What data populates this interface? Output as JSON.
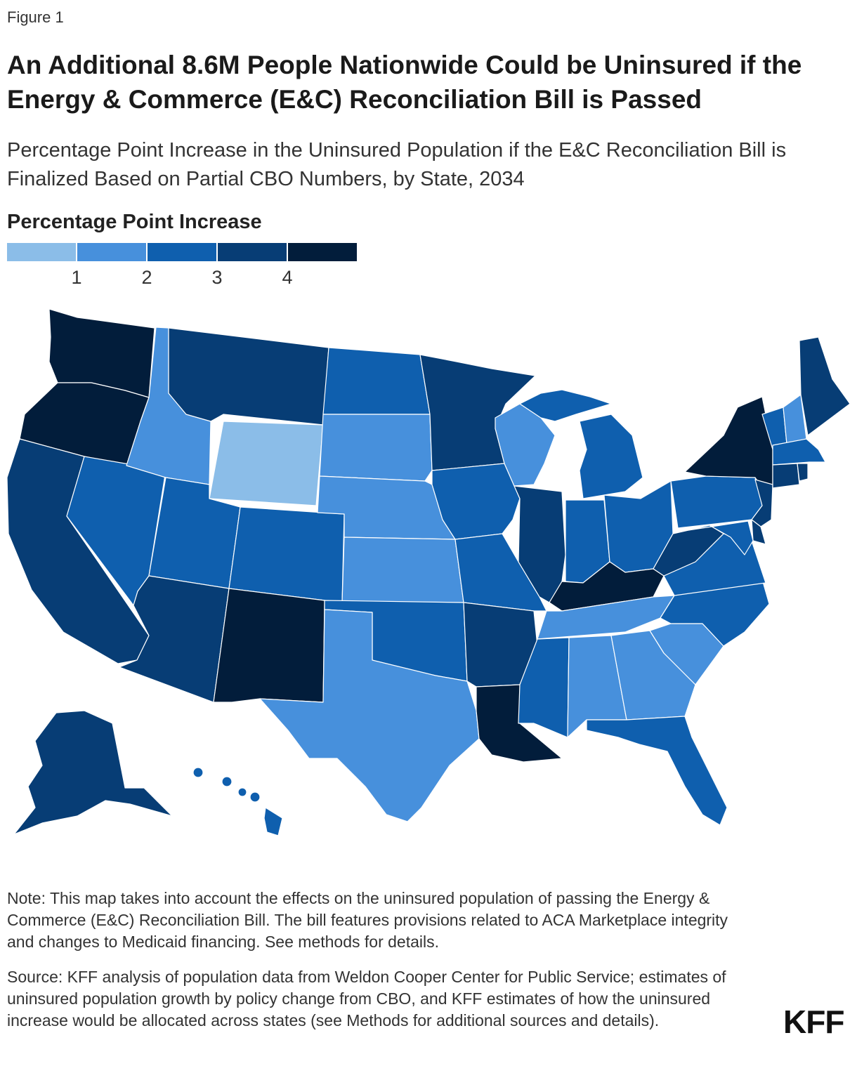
{
  "figure_label": "Figure 1",
  "title": "An Additional 8.6M People Nationwide Could be Uninsured if the Energy & Commerce (E&C) Reconciliation Bill is Passed",
  "subtitle": "Percentage Point Increase in the Uninsured Population if the E&C Reconciliation Bill is Finalized Based on Partial CBO Numbers, by State, 2034",
  "legend": {
    "title": "Percentage Point Increase",
    "ticks": [
      "1",
      "2",
      "3",
      "4"
    ],
    "colors": [
      "#8bbde8",
      "#4790dc",
      "#0f5fae",
      "#073d75",
      "#021d3b"
    ]
  },
  "map_data": {
    "unit": "percentage point increase",
    "states": [
      {
        "state": "WA",
        "bin": 4
      },
      {
        "state": "OR",
        "bin": 4
      },
      {
        "state": "CA",
        "bin": 3
      },
      {
        "state": "NV",
        "bin": 2
      },
      {
        "state": "ID",
        "bin": 1
      },
      {
        "state": "MT",
        "bin": 3
      },
      {
        "state": "WY",
        "bin": 0
      },
      {
        "state": "UT",
        "bin": 2
      },
      {
        "state": "AZ",
        "bin": 3
      },
      {
        "state": "CO",
        "bin": 2
      },
      {
        "state": "NM",
        "bin": 4
      },
      {
        "state": "ND",
        "bin": 2
      },
      {
        "state": "SD",
        "bin": 1
      },
      {
        "state": "NE",
        "bin": 1
      },
      {
        "state": "KS",
        "bin": 1
      },
      {
        "state": "OK",
        "bin": 2
      },
      {
        "state": "TX",
        "bin": 1
      },
      {
        "state": "MN",
        "bin": 3
      },
      {
        "state": "IA",
        "bin": 2
      },
      {
        "state": "MO",
        "bin": 2
      },
      {
        "state": "AR",
        "bin": 3
      },
      {
        "state": "LA",
        "bin": 4
      },
      {
        "state": "WI",
        "bin": 1
      },
      {
        "state": "IL",
        "bin": 3
      },
      {
        "state": "MI",
        "bin": 2
      },
      {
        "state": "IN",
        "bin": 2
      },
      {
        "state": "OH",
        "bin": 2
      },
      {
        "state": "KY",
        "bin": 4
      },
      {
        "state": "TN",
        "bin": 1
      },
      {
        "state": "MS",
        "bin": 2
      },
      {
        "state": "AL",
        "bin": 1
      },
      {
        "state": "GA",
        "bin": 1
      },
      {
        "state": "FL",
        "bin": 2
      },
      {
        "state": "SC",
        "bin": 1
      },
      {
        "state": "NC",
        "bin": 2
      },
      {
        "state": "VA",
        "bin": 2
      },
      {
        "state": "WV",
        "bin": 3
      },
      {
        "state": "PA",
        "bin": 2
      },
      {
        "state": "NY",
        "bin": 4
      },
      {
        "state": "VT",
        "bin": 2
      },
      {
        "state": "NH",
        "bin": 1
      },
      {
        "state": "ME",
        "bin": 3
      },
      {
        "state": "MA",
        "bin": 2
      },
      {
        "state": "CT",
        "bin": 3
      },
      {
        "state": "RI",
        "bin": 3
      },
      {
        "state": "NJ",
        "bin": 3
      },
      {
        "state": "DE",
        "bin": 3
      },
      {
        "state": "MD",
        "bin": 2
      },
      {
        "state": "AK",
        "bin": 3
      },
      {
        "state": "HI",
        "bin": 2
      }
    ]
  },
  "note": "Note: This map takes into account the effects on the uninsured population of passing the Energy & Commerce (E&C) Reconciliation Bill. The bill features provisions related to ACA Marketplace integrity and changes to Medicaid financing. See methods for details.",
  "source": "Source: KFF analysis of population data from Weldon Cooper Center for Public Service; estimates of uninsured population growth by policy change from CBO, and KFF estimates of how the uninsured increase would be allocated across states (see Methods for additional sources and details).",
  "logo": "KFF"
}
